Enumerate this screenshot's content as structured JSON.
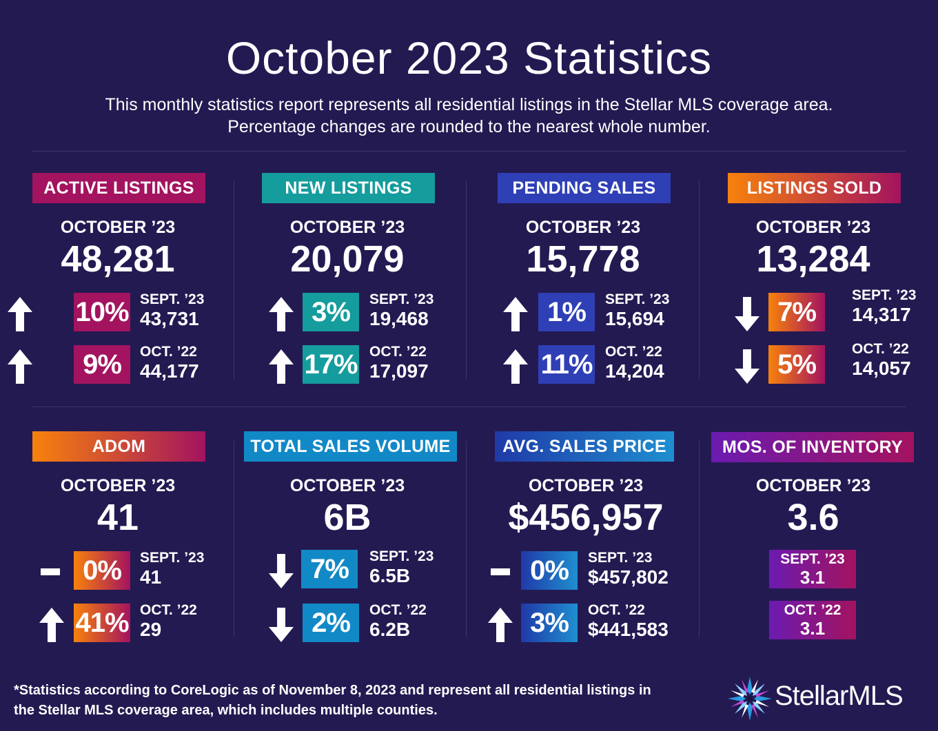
{
  "title": "October 2023 Statistics",
  "subtitle_line1": "This monthly statistics report represents all residential listings in the Stellar MLS coverage area.",
  "subtitle_line2": "Percentage changes are rounded to the nearest whole number.",
  "colors": {
    "background": "#241a52",
    "magenta": "#a3135f",
    "teal": "#159c9d",
    "blue": "#2f3fb5",
    "orange": "#f7820c",
    "sky_blue": "#1289c7",
    "purple": "#6b1bb0"
  },
  "stats": [
    {
      "label": "ACTIVE LISTINGS",
      "period": "OCTOBER ’23",
      "value": "48,281",
      "rows": [
        {
          "direction": "up",
          "pct": "10%",
          "compare_label": "SEPT. ’23",
          "compare_value": "43,731"
        },
        {
          "direction": "up",
          "pct": "9%",
          "compare_label": "OCT. ’22",
          "compare_value": "44,177"
        }
      ]
    },
    {
      "label": "NEW LISTINGS",
      "period": "OCTOBER ’23",
      "value": "20,079",
      "rows": [
        {
          "direction": "up",
          "pct": "3%",
          "compare_label": "SEPT. ’23",
          "compare_value": "19,468"
        },
        {
          "direction": "up",
          "pct": "17%",
          "compare_label": "OCT. ’22",
          "compare_value": "17,097"
        }
      ]
    },
    {
      "label": "PENDING SALES",
      "period": "OCTOBER ’23",
      "value": "15,778",
      "rows": [
        {
          "direction": "up",
          "pct": "1%",
          "compare_label": "SEPT. ’23",
          "compare_value": "15,694"
        },
        {
          "direction": "up",
          "pct": "11%",
          "compare_label": "OCT. ’22",
          "compare_value": "14,204"
        }
      ]
    },
    {
      "label": "LISTINGS SOLD",
      "period": "OCTOBER ’23",
      "value": "13,284",
      "rows": [
        {
          "direction": "down",
          "pct": "7%",
          "compare_label": "SEPT. ’23",
          "compare_value": "14,317"
        },
        {
          "direction": "down",
          "pct": "5%",
          "compare_label": "OCT. ’22",
          "compare_value": "14,057"
        }
      ]
    },
    {
      "label": "ADOM",
      "period": "OCTOBER ’23",
      "value": "41",
      "rows": [
        {
          "direction": "flat",
          "pct": "0%",
          "compare_label": "SEPT. ’23",
          "compare_value": "41"
        },
        {
          "direction": "up",
          "pct": "41%",
          "compare_label": "OCT. ’22",
          "compare_value": "29"
        }
      ]
    },
    {
      "label": "TOTAL SALES VOLUME",
      "period": "OCTOBER ’23",
      "value": "6B",
      "rows": [
        {
          "direction": "down",
          "pct": "7%",
          "compare_label": "SEPT. ’23",
          "compare_value": "6.5B"
        },
        {
          "direction": "down",
          "pct": "2%",
          "compare_label": "OCT. ’22",
          "compare_value": "6.2B"
        }
      ]
    },
    {
      "label": "AVG. SALES PRICE",
      "period": "OCTOBER ’23",
      "value": "$456,957",
      "rows": [
        {
          "direction": "flat",
          "pct": "0%",
          "compare_label": "SEPT. ’23",
          "compare_value": "$457,802"
        },
        {
          "direction": "up",
          "pct": "3%",
          "compare_label": "OCT. ’22",
          "compare_value": "$441,583"
        }
      ]
    },
    {
      "label": "MOS. OF INVENTORY",
      "period": "OCTOBER ’23",
      "value": "3.6",
      "rows": [
        {
          "compare_label": "SEPT. ’23",
          "compare_value": "3.1"
        },
        {
          "compare_label": "OCT. ’22",
          "compare_value": "3.1"
        }
      ]
    }
  ],
  "footnote_line1": "*Statistics according to CoreLogic as of November 8, 2023 and represent all residential listings in",
  "footnote_line2": "the Stellar MLS coverage area, which includes multiple counties.",
  "logo_text": "StellarMLS"
}
